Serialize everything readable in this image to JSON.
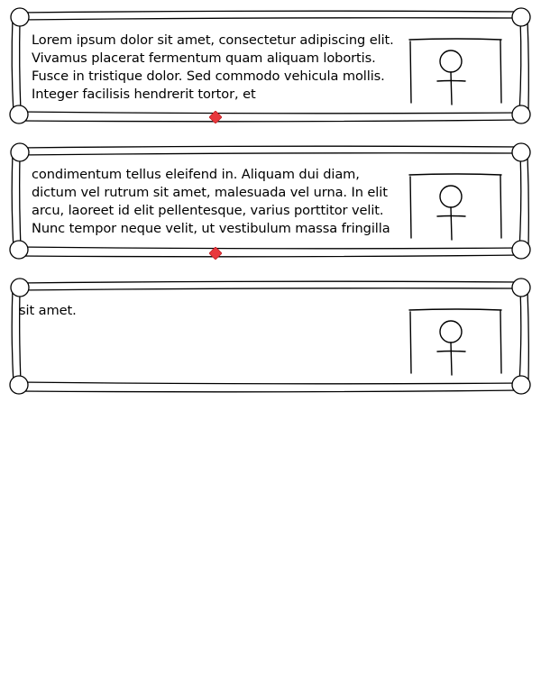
{
  "panels": [
    {
      "text": "Lorem ipsum dolor sit amet, consectetur adipiscing elit. Vivamus placerat fermentum quam aliquam lobortis. Fusce in tristique dolor. Sed commodo vehicula mollis. Integer facilisis hendrerit tortor, et",
      "image_icon": "stick-figure-icon",
      "has_continuation_marker": true
    },
    {
      "text": "condimentum tellus eleifend in. Aliquam dui diam, dictum vel rutrum sit amet, malesuada vel urna. In elit arcu, laoreet id elit pellentesque, varius porttitor velit. Nunc tempor neque velit, ut vestibulum massa fringilla",
      "image_icon": "stick-figure-icon",
      "has_continuation_marker": true
    },
    {
      "text": "sit amet.",
      "image_icon": "stick-figure-icon",
      "has_continuation_marker": false
    }
  ],
  "colors": {
    "stroke": "#000000",
    "marker": "#e8383d",
    "background": "#ffffff"
  }
}
